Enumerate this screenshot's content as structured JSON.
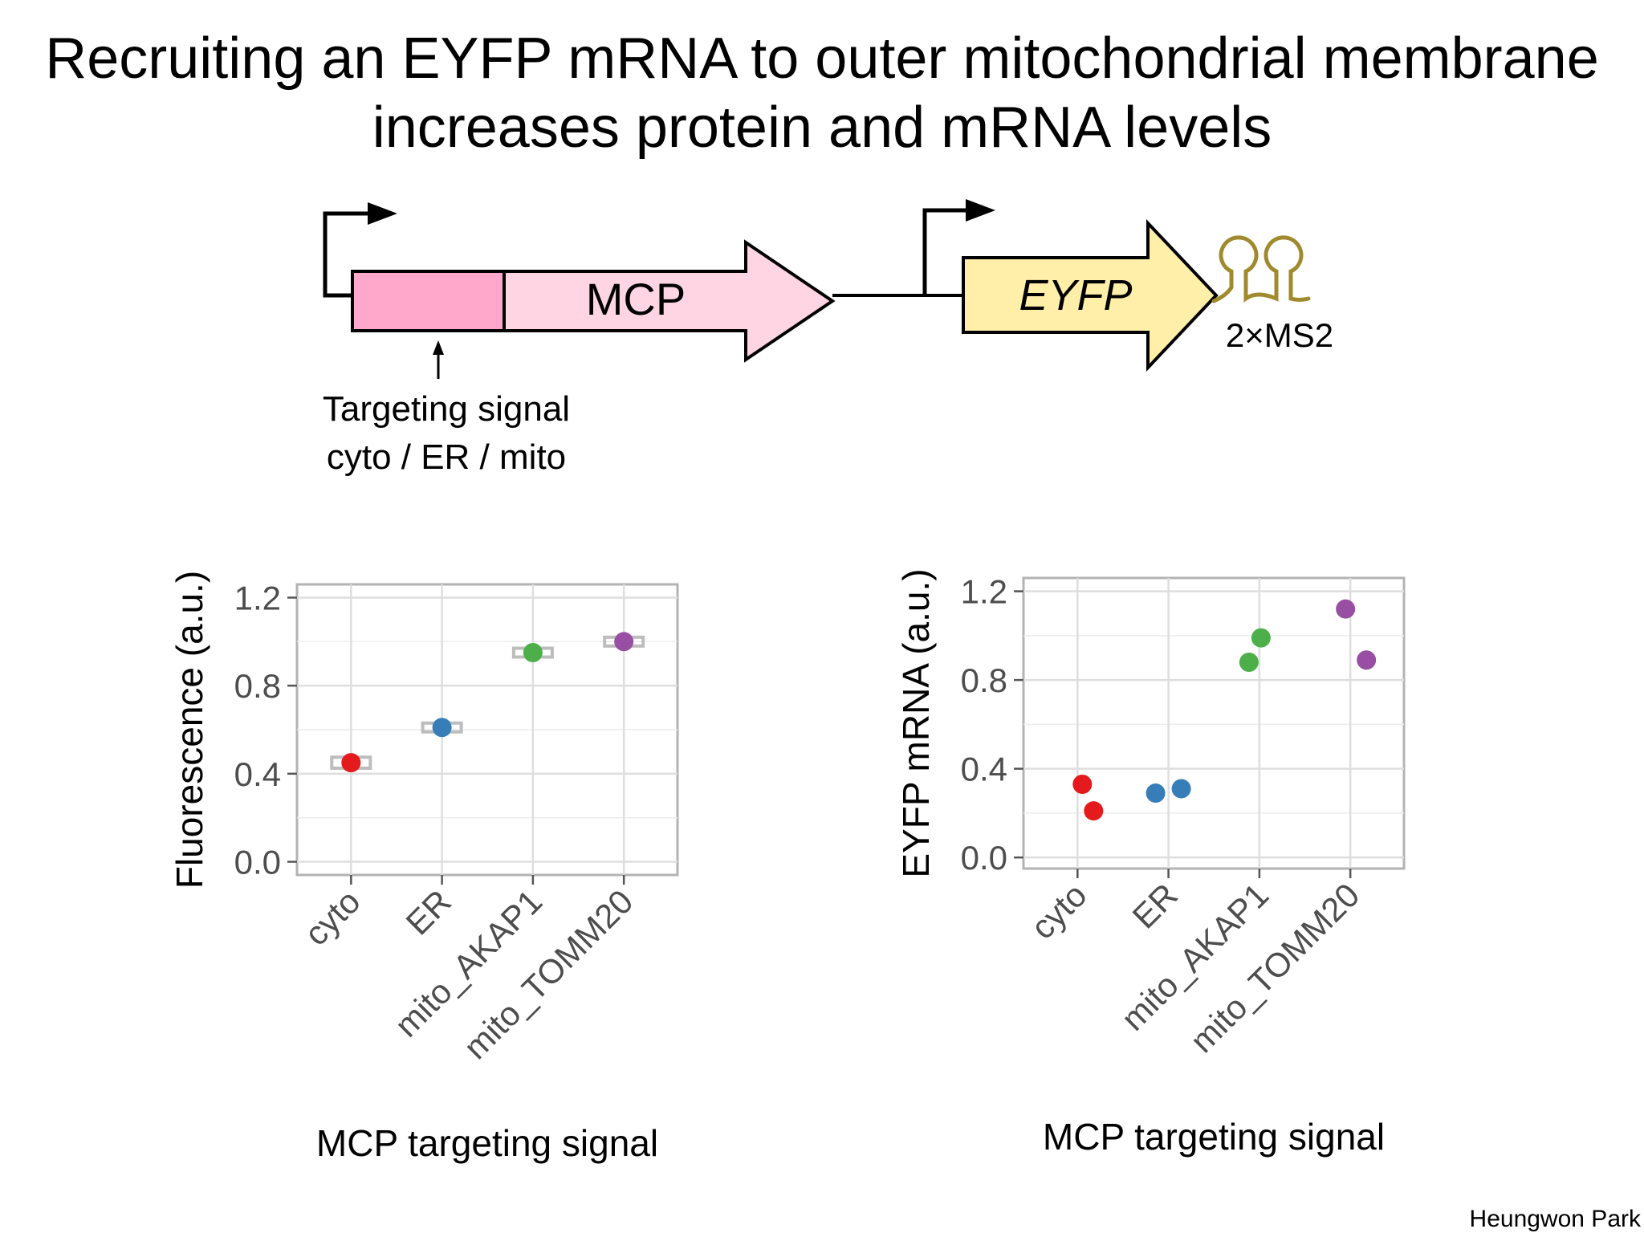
{
  "title": {
    "line1": "Recruiting an EYFP mRNA to outer mitochondrial membrane",
    "line2": "increases protein and mRNA levels"
  },
  "diagram": {
    "mcp_label": "MCP",
    "eyfp_label": "EYFP",
    "ms2_label": "2×MS2",
    "targeting_label_line1": "Targeting signal",
    "targeting_label_line2": "cyto / ER / mito",
    "colors": {
      "targeting_box": "#FFA8CC",
      "mcp_arrow": "#FFD5E4",
      "eyfp_arrow": "#FFEFA8",
      "ms2_hairpin": "#A08A2E"
    }
  },
  "chart_data": [
    {
      "type": "scatter",
      "categories": [
        "cyto",
        "ER",
        "mito_AKAP1",
        "mito_TOMM20"
      ],
      "series": [
        {
          "values": [
            0.45,
            0.61,
            0.95,
            1.0
          ],
          "errors": [
            0.025,
            0.02,
            0.02,
            0.02
          ]
        }
      ],
      "colors": [
        "#E41A1C",
        "#377EB8",
        "#4DAF4A",
        "#984EA3"
      ],
      "xlabel": "MCP targeting signal",
      "ylabel": "Fluorescence (a.u.)",
      "ylim": [
        -0.06,
        1.26
      ],
      "yticks": [
        "0.0",
        "0.4",
        "0.8",
        "1.2"
      ],
      "ytick_values": [
        0.0,
        0.4,
        0.8,
        1.2
      ],
      "grid": true
    },
    {
      "type": "scatter",
      "categories": [
        "cyto",
        "ER",
        "mito_AKAP1",
        "mito_TOMM20"
      ],
      "points": [
        {
          "category": "cyto",
          "y": 0.33
        },
        {
          "category": "cyto",
          "y": 0.21
        },
        {
          "category": "ER",
          "y": 0.29
        },
        {
          "category": "ER",
          "y": 0.31
        },
        {
          "category": "mito_AKAP1",
          "y": 0.88
        },
        {
          "category": "mito_AKAP1",
          "y": 0.99
        },
        {
          "category": "mito_TOMM20",
          "y": 1.12
        },
        {
          "category": "mito_TOMM20",
          "y": 0.89
        }
      ],
      "colors": [
        "#E41A1C",
        "#377EB8",
        "#4DAF4A",
        "#984EA3"
      ],
      "xlabel": "MCP targeting signal",
      "ylabel": "EYFP mRNA (a.u.)",
      "ylim": [
        -0.05,
        1.26
      ],
      "yticks": [
        "0.0",
        "0.4",
        "0.8",
        "1.2"
      ],
      "ytick_values": [
        0.0,
        0.4,
        0.8,
        1.2
      ],
      "grid": true
    }
  ],
  "author": "Heungwon Park"
}
